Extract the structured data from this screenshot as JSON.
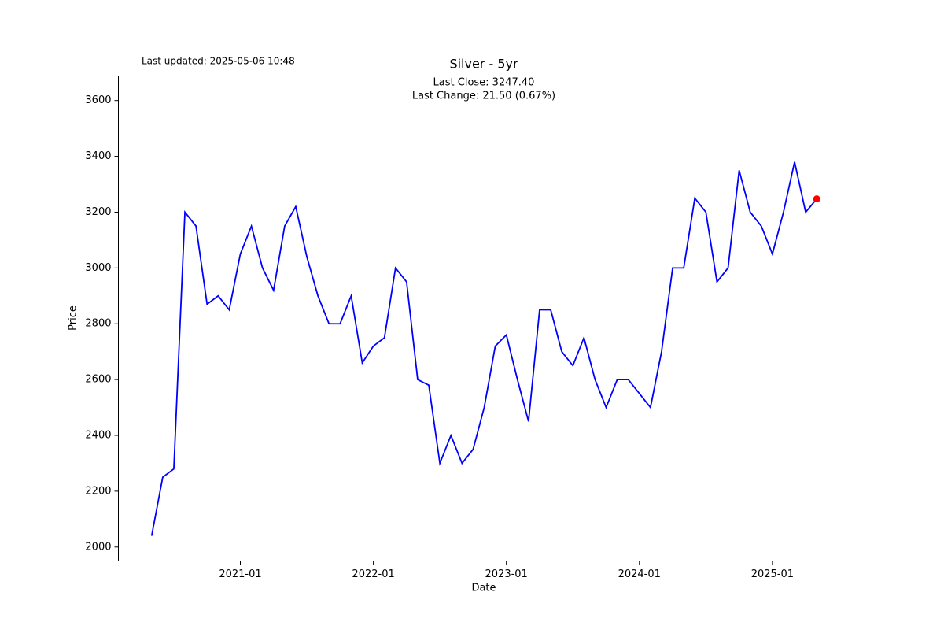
{
  "chart_data": {
    "type": "line",
    "title": "Silver - 5yr",
    "updated": "Last updated: 2025-05-06 10:48",
    "annotations": [
      "Last Close: 3247.40",
      "Last Change: 21.50 (0.67%)"
    ],
    "xlabel": "Date",
    "ylabel": "Price",
    "x": [
      "2020-05",
      "2020-06",
      "2020-07",
      "2020-08",
      "2020-09",
      "2020-10",
      "2020-11",
      "2020-12",
      "2021-01",
      "2021-02",
      "2021-03",
      "2021-04",
      "2021-05",
      "2021-06",
      "2021-07",
      "2021-08",
      "2021-09",
      "2021-10",
      "2021-11",
      "2021-12",
      "2022-01",
      "2022-02",
      "2022-03",
      "2022-04",
      "2022-05",
      "2022-06",
      "2022-07",
      "2022-08",
      "2022-09",
      "2022-10",
      "2022-11",
      "2022-12",
      "2023-01",
      "2023-02",
      "2023-03",
      "2023-04",
      "2023-05",
      "2023-06",
      "2023-07",
      "2023-08",
      "2023-09",
      "2023-10",
      "2023-11",
      "2023-12",
      "2024-01",
      "2024-02",
      "2024-03",
      "2024-04",
      "2024-05",
      "2024-06",
      "2024-07",
      "2024-08",
      "2024-09",
      "2024-10",
      "2024-11",
      "2024-12",
      "2025-01",
      "2025-02",
      "2025-03",
      "2025-04",
      "2025-05"
    ],
    "series": [
      {
        "name": "Silver",
        "color": "#0000ff",
        "values": [
          2040,
          2250,
          2280,
          3200,
          3150,
          2870,
          2900,
          2850,
          3050,
          3150,
          3000,
          2920,
          3150,
          3220,
          3040,
          2900,
          2800,
          2800,
          2900,
          2660,
          2720,
          2750,
          3000,
          2950,
          2600,
          2580,
          2300,
          2400,
          2300,
          2350,
          2500,
          2720,
          2760,
          2600,
          2450,
          2850,
          2850,
          2700,
          2650,
          2750,
          2600,
          2500,
          2600,
          2600,
          2550,
          2500,
          2700,
          3000,
          3000,
          3250,
          3200,
          2950,
          3000,
          3350,
          3200,
          3150,
          3050,
          3200,
          3380,
          3200,
          3247.4
        ]
      }
    ],
    "marker_color": "#ff0000",
    "xlim": [
      "2020-02",
      "2025-08"
    ],
    "xticks": [
      "2021-01",
      "2022-01",
      "2023-01",
      "2024-01",
      "2025-01"
    ],
    "ylim": [
      1950,
      3688
    ],
    "yticks": [
      2000,
      2200,
      2400,
      2600,
      2800,
      3000,
      3200,
      3400,
      3600
    ],
    "grid": false
  }
}
